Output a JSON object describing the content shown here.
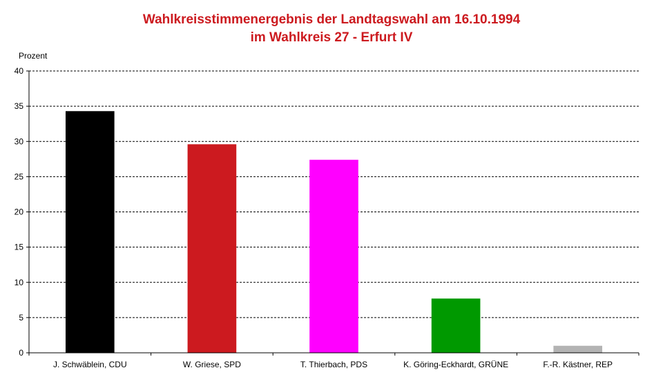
{
  "chart_data": {
    "type": "bar",
    "title": "Wahlkreisstimmenergebnis der Landtagswahl am 16.10.1994",
    "subtitle": "im Wahlkreis 27 - Erfurt IV",
    "ylabel": "Prozent",
    "xlabel": "",
    "ylim": [
      0,
      40
    ],
    "yticks": [
      0,
      5,
      10,
      15,
      20,
      25,
      30,
      35,
      40
    ],
    "grid": true,
    "categories": [
      "J. Schwäblein, CDU",
      "W. Griese, SPD",
      "T. Thierbach, PDS",
      "K. Göring-Eckhardt, GRÜNE",
      "F.-R. Kästner, REP"
    ],
    "values": [
      34.3,
      29.6,
      27.4,
      7.7,
      1.0
    ],
    "colors": [
      "#000000",
      "#cc1a1f",
      "#ff00ff",
      "#009900",
      "#b3b3b3"
    ]
  }
}
